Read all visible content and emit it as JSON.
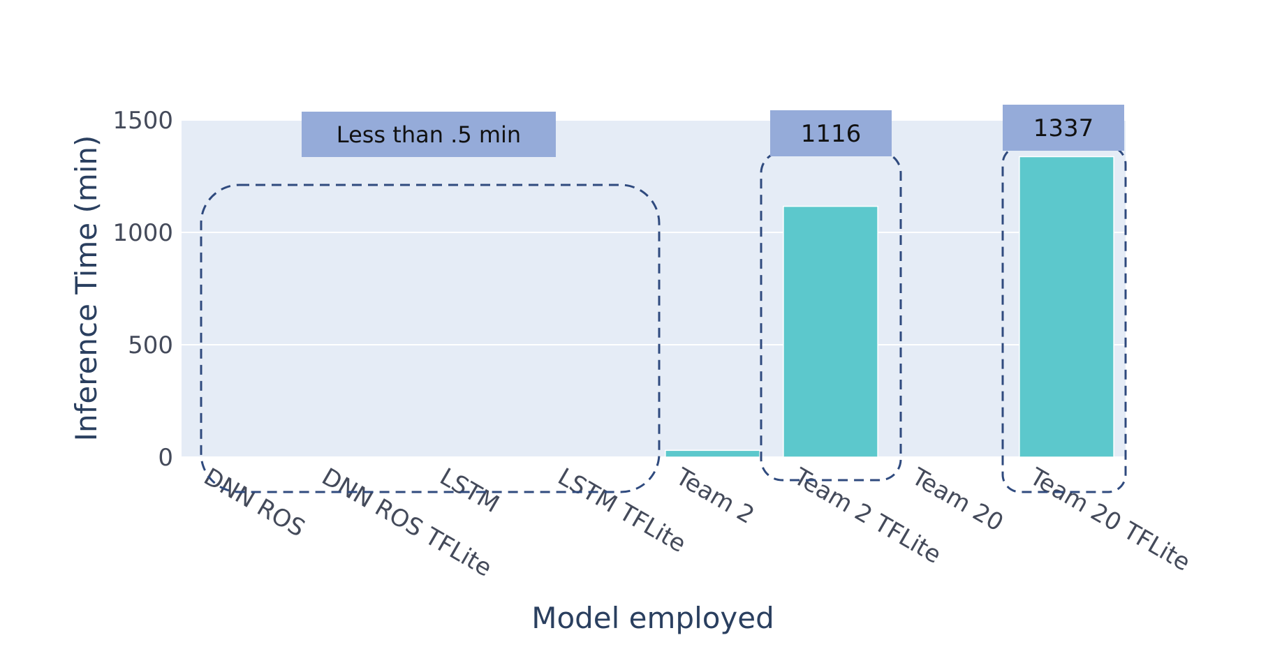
{
  "chart_data": {
    "type": "bar",
    "title": "",
    "xlabel": "Model employed",
    "ylabel": "Inference Time (min)",
    "ylim": [
      0,
      1500
    ],
    "yticks": [
      0,
      500,
      1000,
      1500
    ],
    "categories": [
      "DNN ROS",
      "DNN ROS TFLite",
      "LSTM",
      "LSTM TFLite",
      "Team 2",
      "Team 2 TFLite",
      "Team 20",
      "Team 20 TFLite"
    ],
    "values": [
      0.2,
      0.2,
      0.3,
      0.3,
      30,
      1116,
      0,
      1337
    ],
    "grid": true,
    "legend": "none",
    "annotations": [
      {
        "text": "Less than .5 min",
        "refers_to": [
          "DNN ROS",
          "DNN ROS TFLite",
          "LSTM",
          "LSTM TFLite"
        ]
      },
      {
        "text": "1116",
        "refers_to": [
          "Team 2 TFLite"
        ]
      },
      {
        "text": "1337",
        "refers_to": [
          "Team 20 TFLite"
        ]
      }
    ],
    "colors": {
      "bar": "#5cc8cc",
      "plot_bg": "#e5ecf6",
      "grid": "#ffffff",
      "callout_fill": "#95abd9",
      "highlight_stroke": "#2f4a7e",
      "axis_text": "#2a3f5f"
    }
  }
}
